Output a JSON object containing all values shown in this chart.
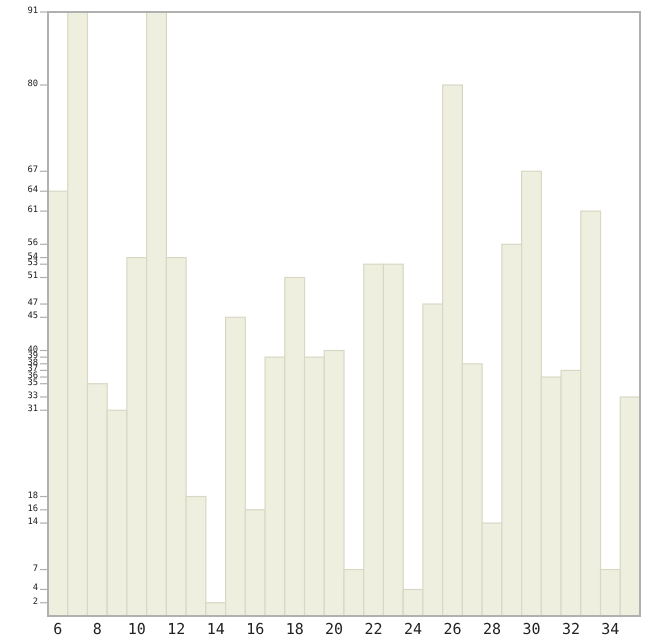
{
  "chart_data": {
    "type": "bar",
    "categories": [
      "6",
      null,
      "8",
      null,
      "10",
      null,
      "12",
      null,
      "14",
      null,
      "16",
      null,
      "18",
      null,
      "20",
      null,
      "22",
      null,
      "24",
      null,
      "26",
      null,
      "28",
      null,
      "30",
      null,
      "32",
      null,
      "34",
      null
    ],
    "values": [
      64,
      91,
      35,
      31,
      54,
      91,
      54,
      18,
      2,
      45,
      16,
      39,
      51,
      39,
      40,
      7,
      53,
      53,
      4,
      47,
      80,
      38,
      14,
      56,
      67,
      36,
      37,
      61,
      7,
      33
    ],
    "color": "#efefe0",
    "ylim": [
      0,
      91
    ],
    "yticks": [
      2,
      4,
      7,
      14,
      16,
      18,
      31,
      33,
      35,
      36,
      37,
      38,
      39,
      40,
      45,
      47,
      51,
      53,
      54,
      56,
      61,
      64,
      67,
      80,
      91
    ]
  }
}
